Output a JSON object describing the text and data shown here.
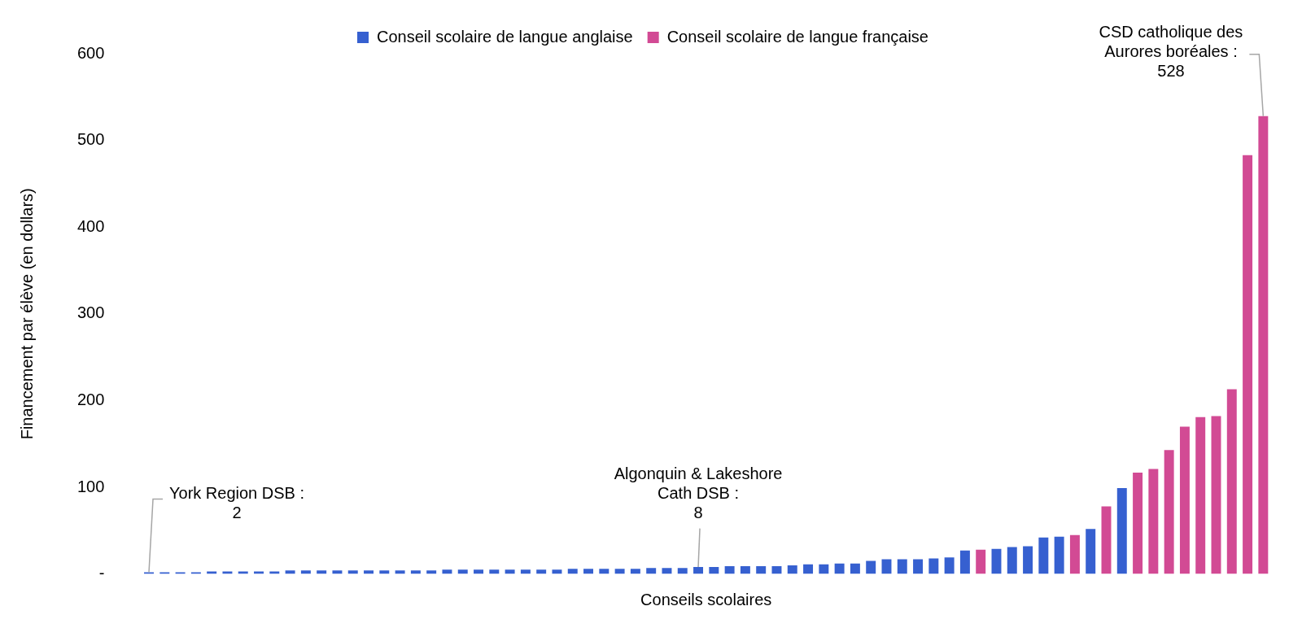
{
  "chart_data": {
    "type": "bar",
    "xlabel": "Conseils scolaires",
    "ylabel": "Financement par élève (en dollars)",
    "categories": [
      null,
      null,
      null,
      null,
      null,
      null,
      null,
      null,
      null,
      null,
      null,
      null,
      null,
      null,
      null,
      null,
      null,
      null,
      null,
      null,
      null,
      null,
      null,
      null,
      null,
      null,
      null,
      null,
      null,
      null,
      null,
      null,
      null,
      null,
      null,
      null,
      null,
      null,
      null,
      null,
      null,
      null,
      null,
      null,
      null,
      null,
      null,
      null,
      null,
      null,
      null,
      null,
      null,
      null,
      null,
      null,
      null,
      null,
      null,
      null,
      null,
      null,
      null,
      null,
      null,
      null,
      null,
      null,
      null,
      null,
      null,
      null
    ],
    "series": [
      {
        "name": "Conseil scolaire de langue anglaise",
        "color": "#3660d0",
        "values": [
          2,
          2,
          2,
          2,
          3,
          3,
          3,
          3,
          3,
          4,
          4,
          4,
          4,
          4,
          4,
          4,
          4,
          4,
          4,
          5,
          5,
          5,
          5,
          5,
          5,
          5,
          5,
          6,
          6,
          6,
          6,
          6,
          7,
          7,
          7,
          8,
          8,
          9,
          9,
          9,
          9,
          10,
          11,
          11,
          12,
          12,
          15,
          17,
          17,
          17,
          18,
          19,
          27,
          null,
          29,
          31,
          32,
          42,
          43,
          null,
          52,
          null,
          99,
          null,
          null,
          null,
          null,
          null,
          null,
          null,
          null,
          null
        ]
      },
      {
        "name": "Conseil scolaire de langue française",
        "color": "#d24a94",
        "values": [
          null,
          null,
          null,
          null,
          null,
          null,
          null,
          null,
          null,
          null,
          null,
          null,
          null,
          null,
          null,
          null,
          null,
          null,
          null,
          null,
          null,
          null,
          null,
          null,
          null,
          null,
          null,
          null,
          null,
          null,
          null,
          null,
          null,
          null,
          null,
          null,
          null,
          null,
          null,
          null,
          null,
          null,
          null,
          null,
          null,
          null,
          null,
          null,
          null,
          null,
          null,
          null,
          null,
          28,
          null,
          null,
          null,
          null,
          null,
          45,
          null,
          78,
          null,
          117,
          121,
          143,
          170,
          181,
          182,
          213,
          483,
          528
        ]
      }
    ],
    "ylim": [
      0,
      600
    ],
    "yticks": [
      {
        "value": 0,
        "label": "-"
      },
      100,
      200,
      300,
      400,
      500,
      600
    ],
    "grid": false,
    "stacked": true,
    "legend": "top",
    "annotations": [
      "York Region DSB :\n2",
      "Algonquin & Lakeshore\nCath DSB :\n8",
      "CSD catholique des\nAurores boréales :\n528"
    ]
  }
}
